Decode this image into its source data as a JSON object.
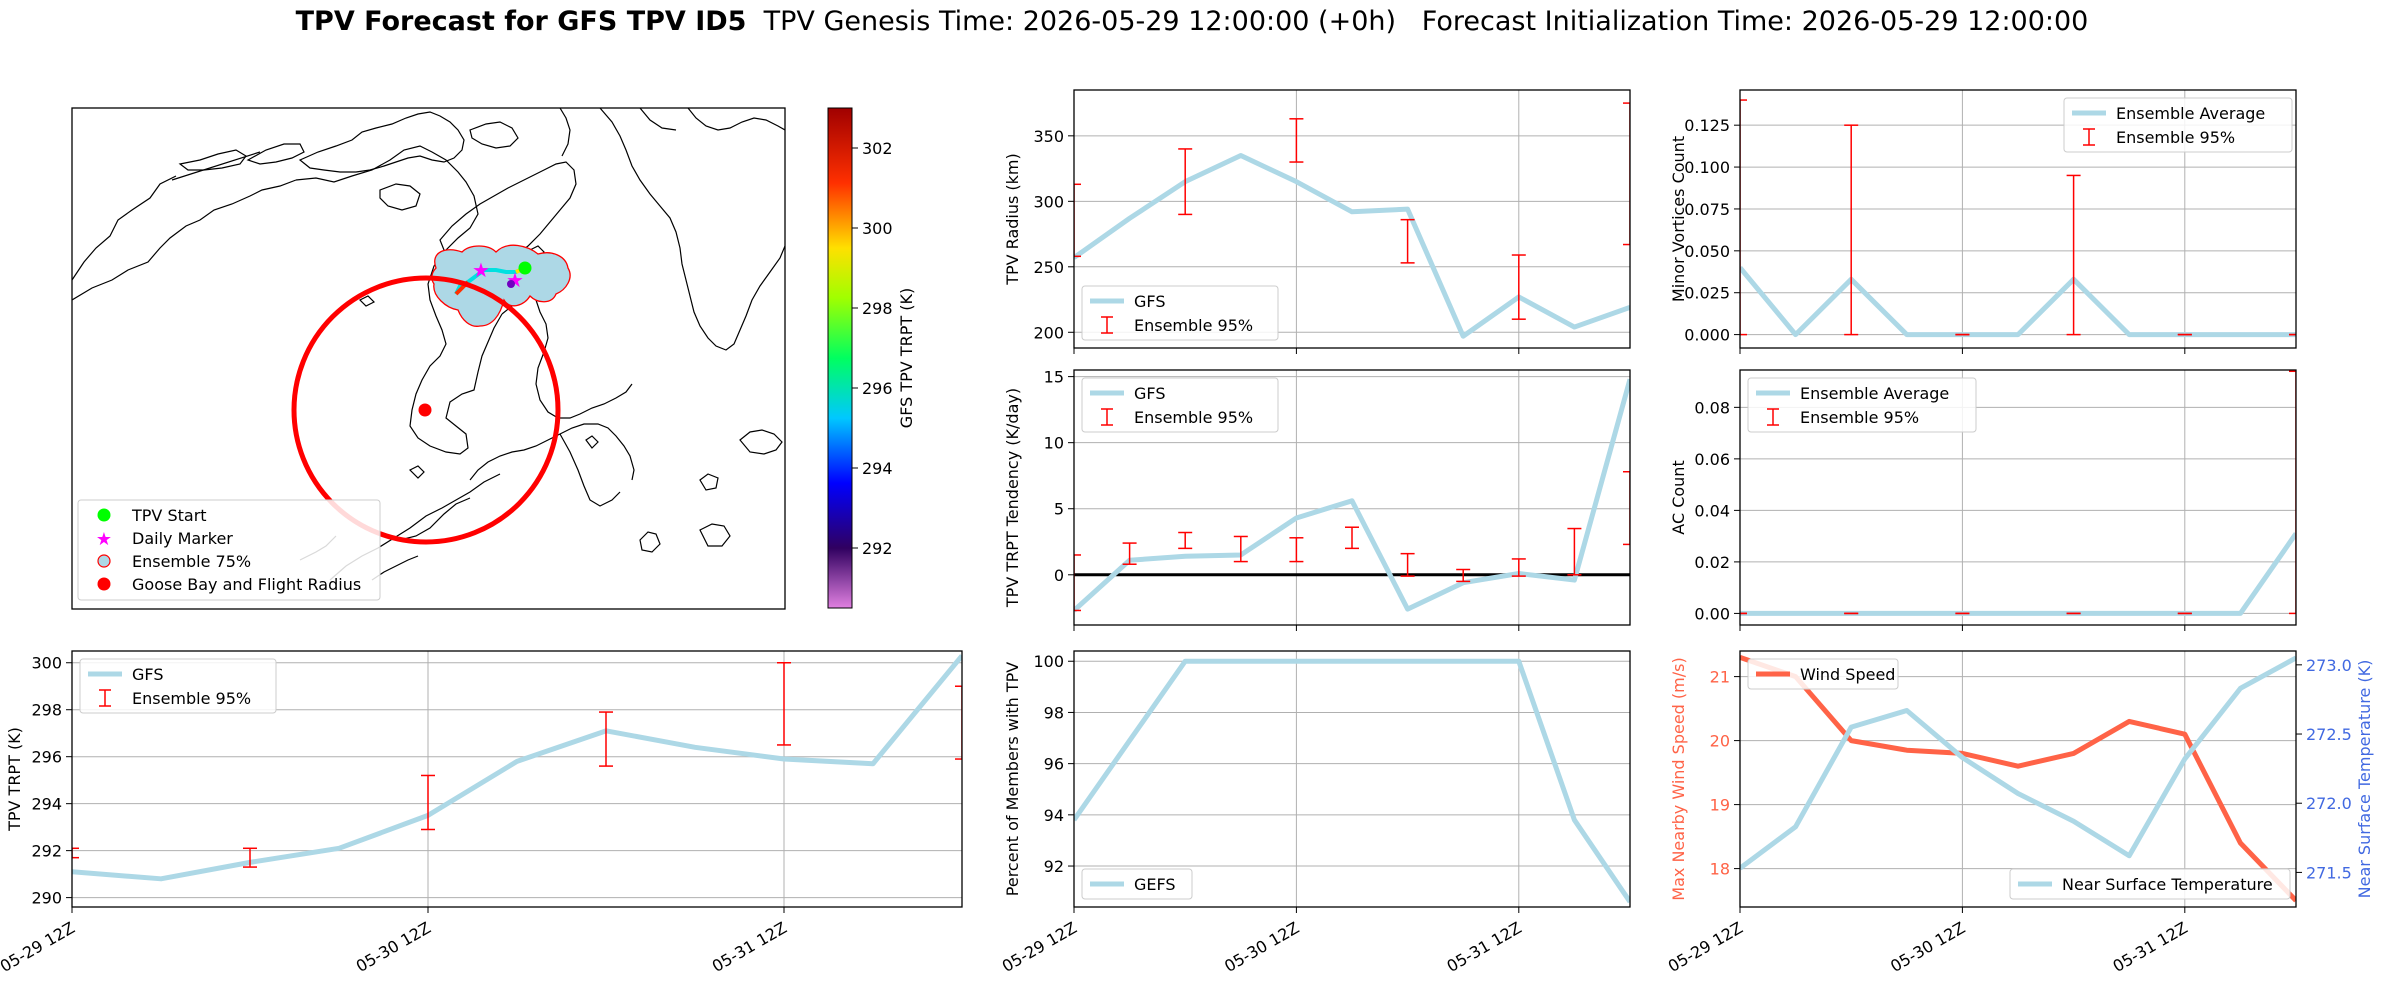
{
  "figure": {
    "title_bold": "TPV Forecast for GFS TPV ID5",
    "title_genesis": "TPV Genesis Time: 2026-05-29 12:00:00 (+0h)",
    "title_init": "Forecast Initialization Time: 2026-05-29 12:00:00"
  },
  "colors": {
    "gfs_line": "#add8e6",
    "ensemble_err": "#ff0000",
    "wind": "#ff6347",
    "temp_axis": "#4169e1",
    "grid": "#b0b0b0",
    "zero_line": "#000000"
  },
  "chart_data": [
    {
      "id": "map",
      "type": "map",
      "colorbar": {
        "label": "GFS TPV TRPT (K)",
        "range": [
          290.5,
          303
        ],
        "ticks": [
          292,
          294,
          296,
          298,
          300,
          302
        ],
        "colormap": "gist_ncar-like (violet to red)"
      },
      "legend": [
        "TPV Start",
        "Daily Marker",
        "Ensemble 75%",
        "Goose Bay and Flight Radius"
      ],
      "legend_colors": [
        "#00ff00",
        "#ff00ff",
        "#add8e6",
        "#ff0000"
      ],
      "legend_placement": "lower-left"
    },
    {
      "id": "radius",
      "type": "line",
      "ylabel": "TPV Radius (km)",
      "ylim": [
        188,
        385
      ],
      "yticks": [
        200,
        250,
        300,
        350
      ],
      "xlim": [
        0,
        10
      ],
      "xticks": [
        0,
        4,
        8
      ],
      "xticklabels": [
        "05-29 12Z",
        "05-30 12Z",
        "05-31 12Z"
      ],
      "show_xticklabels": false,
      "series": [
        {
          "name": "GFS",
          "x": [
            0,
            1,
            2,
            3,
            4,
            5,
            6,
            7,
            8,
            9,
            10
          ],
          "y": [
            257,
            287,
            315,
            335,
            315,
            292,
            294,
            197,
            227,
            204,
            219
          ]
        }
      ],
      "errorbars": {
        "name": "Ensemble 95%",
        "x": [
          0,
          2,
          4,
          6,
          8,
          10
        ],
        "low": [
          258,
          290,
          330,
          253,
          210,
          267
        ],
        "high": [
          313,
          340,
          363,
          286,
          259,
          375
        ]
      },
      "legend_placement": "lower-left",
      "grid": true
    },
    {
      "id": "minor",
      "type": "line",
      "ylabel": "Minor Vortices Count",
      "ylim": [
        -0.008,
        0.146
      ],
      "yticks": [
        0.0,
        0.025,
        0.05,
        0.075,
        0.1,
        0.125
      ],
      "yticklabels": [
        "0.000",
        "0.025",
        "0.050",
        "0.075",
        "0.100",
        "0.125"
      ],
      "xlim": [
        0,
        10
      ],
      "xticks": [
        0,
        4,
        8
      ],
      "xticklabels": [
        "05-29 12Z",
        "05-30 12Z",
        "05-31 12Z"
      ],
      "show_xticklabels": false,
      "series": [
        {
          "name": "Ensemble Average",
          "x": [
            0,
            1,
            2,
            3,
            4,
            5,
            6,
            7,
            8,
            9,
            10
          ],
          "y": [
            0.04,
            0.0,
            0.033,
            0.0,
            0.0,
            0.0,
            0.033,
            0.0,
            0.0,
            0.0,
            0.0
          ]
        }
      ],
      "errorbars": {
        "name": "Ensemble 95%",
        "x": [
          0,
          2,
          4,
          6,
          8,
          10
        ],
        "low": [
          0,
          0,
          0,
          0,
          0,
          0
        ],
        "high": [
          0.14,
          0.125,
          0.0,
          0.095,
          0.0,
          0.0
        ]
      },
      "legend_placement": "top-right",
      "grid": true
    },
    {
      "id": "tendency",
      "type": "line",
      "ylabel": "TPV TRPT Tendency (K/day)",
      "ylim": [
        -3.8,
        15.5
      ],
      "yticks": [
        0,
        5,
        10,
        15
      ],
      "xlim": [
        0,
        10
      ],
      "xticks": [
        0,
        4,
        8
      ],
      "xticklabels": [
        "05-29 12Z",
        "05-30 12Z",
        "05-31 12Z"
      ],
      "show_xticklabels": false,
      "zero_line": true,
      "series": [
        {
          "name": "GFS",
          "x": [
            0,
            1,
            2,
            3,
            4,
            5,
            6,
            7,
            8,
            9,
            10
          ],
          "y": [
            -2.7,
            1.1,
            1.4,
            1.5,
            4.3,
            5.6,
            -2.6,
            -0.6,
            0.1,
            -0.4,
            14.8
          ]
        }
      ],
      "errorbars": {
        "name": "Ensemble 95%",
        "x": [
          0,
          1,
          2,
          3,
          4,
          5,
          6,
          7,
          8,
          9,
          10
        ],
        "low": [
          -2.7,
          0.8,
          2.0,
          1.0,
          1.0,
          2.0,
          -0.1,
          -0.5,
          -0.1,
          0.0,
          2.3
        ],
        "high": [
          1.5,
          2.4,
          3.2,
          2.9,
          2.8,
          3.6,
          1.6,
          0.4,
          1.2,
          3.5,
          7.8
        ]
      },
      "legend_placement": "top-left",
      "grid": true
    },
    {
      "id": "ac",
      "type": "line",
      "ylabel": "AC Count",
      "ylim": [
        -0.0045,
        0.0945
      ],
      "yticks": [
        0.0,
        0.02,
        0.04,
        0.06,
        0.08
      ],
      "yticklabels": [
        "0.00",
        "0.02",
        "0.04",
        "0.06",
        "0.08"
      ],
      "xlim": [
        0,
        10
      ],
      "xticks": [
        0,
        4,
        8
      ],
      "xticklabels": [
        "05-29 12Z",
        "05-30 12Z",
        "05-31 12Z"
      ],
      "show_xticklabels": false,
      "series": [
        {
          "name": "Ensemble Average",
          "x": [
            0,
            1,
            2,
            3,
            4,
            5,
            6,
            7,
            8,
            9,
            10
          ],
          "y": [
            0,
            0,
            0,
            0,
            0,
            0,
            0,
            0,
            0,
            0,
            0.031
          ]
        }
      ],
      "errorbars": {
        "name": "Ensemble 95%",
        "x": [
          0,
          2,
          4,
          6,
          8,
          10
        ],
        "low": [
          0,
          0,
          0,
          0,
          0,
          0
        ],
        "high": [
          0,
          0,
          0,
          0,
          0,
          0.094
        ]
      },
      "legend_placement": "top-left",
      "grid": true
    },
    {
      "id": "trpt",
      "type": "line",
      "ylabel": "TPV TRPT (K)",
      "ylim": [
        289.6,
        300.5
      ],
      "yticks": [
        290,
        292,
        294,
        296,
        298,
        300
      ],
      "xlim": [
        0,
        10
      ],
      "xticks": [
        0,
        4,
        8
      ],
      "xticklabels": [
        "05-29 12Z",
        "05-30 12Z",
        "05-31 12Z"
      ],
      "show_xticklabels": true,
      "series": [
        {
          "name": "GFS",
          "x": [
            0,
            1,
            2,
            3,
            4,
            5,
            6,
            7,
            8,
            9,
            10
          ],
          "y": [
            291.1,
            290.8,
            291.5,
            292.1,
            293.5,
            295.8,
            297.1,
            296.4,
            295.9,
            295.7,
            300.3
          ]
        }
      ],
      "errorbars": {
        "name": "Ensemble 95%",
        "x": [
          0,
          2,
          4,
          6,
          8,
          10
        ],
        "low": [
          291.7,
          291.3,
          292.9,
          295.6,
          296.5,
          295.9
        ],
        "high": [
          292.1,
          292.1,
          295.2,
          297.9,
          300.0,
          299.0
        ]
      },
      "legend_placement": "top-left",
      "grid": true
    },
    {
      "id": "percent",
      "type": "line",
      "ylabel": "Percent of Members with TPV",
      "ylim": [
        90.4,
        100.4
      ],
      "yticks": [
        92,
        94,
        96,
        98,
        100
      ],
      "xlim": [
        0,
        10
      ],
      "xticks": [
        0,
        4,
        8
      ],
      "xticklabels": [
        "05-29 12Z",
        "05-30 12Z",
        "05-31 12Z"
      ],
      "show_xticklabels": true,
      "series": [
        {
          "name": "GEFS",
          "x": [
            0,
            1,
            2,
            3,
            4,
            5,
            6,
            7,
            8,
            9,
            10
          ],
          "y": [
            93.8,
            96.9,
            100,
            100,
            100,
            100,
            100,
            100,
            100,
            93.8,
            90.6
          ]
        }
      ],
      "legend_placement": "lower-left",
      "grid": true
    },
    {
      "id": "wind_temp",
      "type": "line",
      "ylabel": "Max Nearby Wind Speed (m/s)",
      "ylabel_right": "Near Surface Temperature (K)",
      "ylim": [
        17.4,
        21.4
      ],
      "yticks": [
        18,
        19,
        20,
        21
      ],
      "ylim_right": [
        271.25,
        273.1
      ],
      "yticks_right": [
        271.5,
        272.0,
        272.5,
        273.0
      ],
      "xlim": [
        0,
        10
      ],
      "xticks": [
        0,
        4,
        8
      ],
      "xticklabels": [
        "05-29 12Z",
        "05-30 12Z",
        "05-31 12Z"
      ],
      "show_xticklabels": true,
      "series": [
        {
          "name": "Wind Speed",
          "axis": "left",
          "x": [
            0,
            1,
            2,
            3,
            4,
            5,
            6,
            7,
            8,
            9,
            10
          ],
          "y": [
            21.3,
            21.0,
            20.0,
            19.85,
            19.8,
            19.6,
            19.8,
            20.3,
            20.1,
            18.4,
            17.5
          ]
        },
        {
          "name": "Near Surface Temperature",
          "axis": "right",
          "x": [
            0,
            1,
            2,
            3,
            4,
            5,
            6,
            7,
            8,
            9,
            10
          ],
          "y": [
            271.53,
            271.83,
            272.55,
            272.67,
            272.33,
            272.07,
            271.87,
            271.62,
            272.32,
            272.83,
            273.05
          ]
        }
      ],
      "legend_placement": "top-left / lower-right",
      "grid": true
    }
  ]
}
